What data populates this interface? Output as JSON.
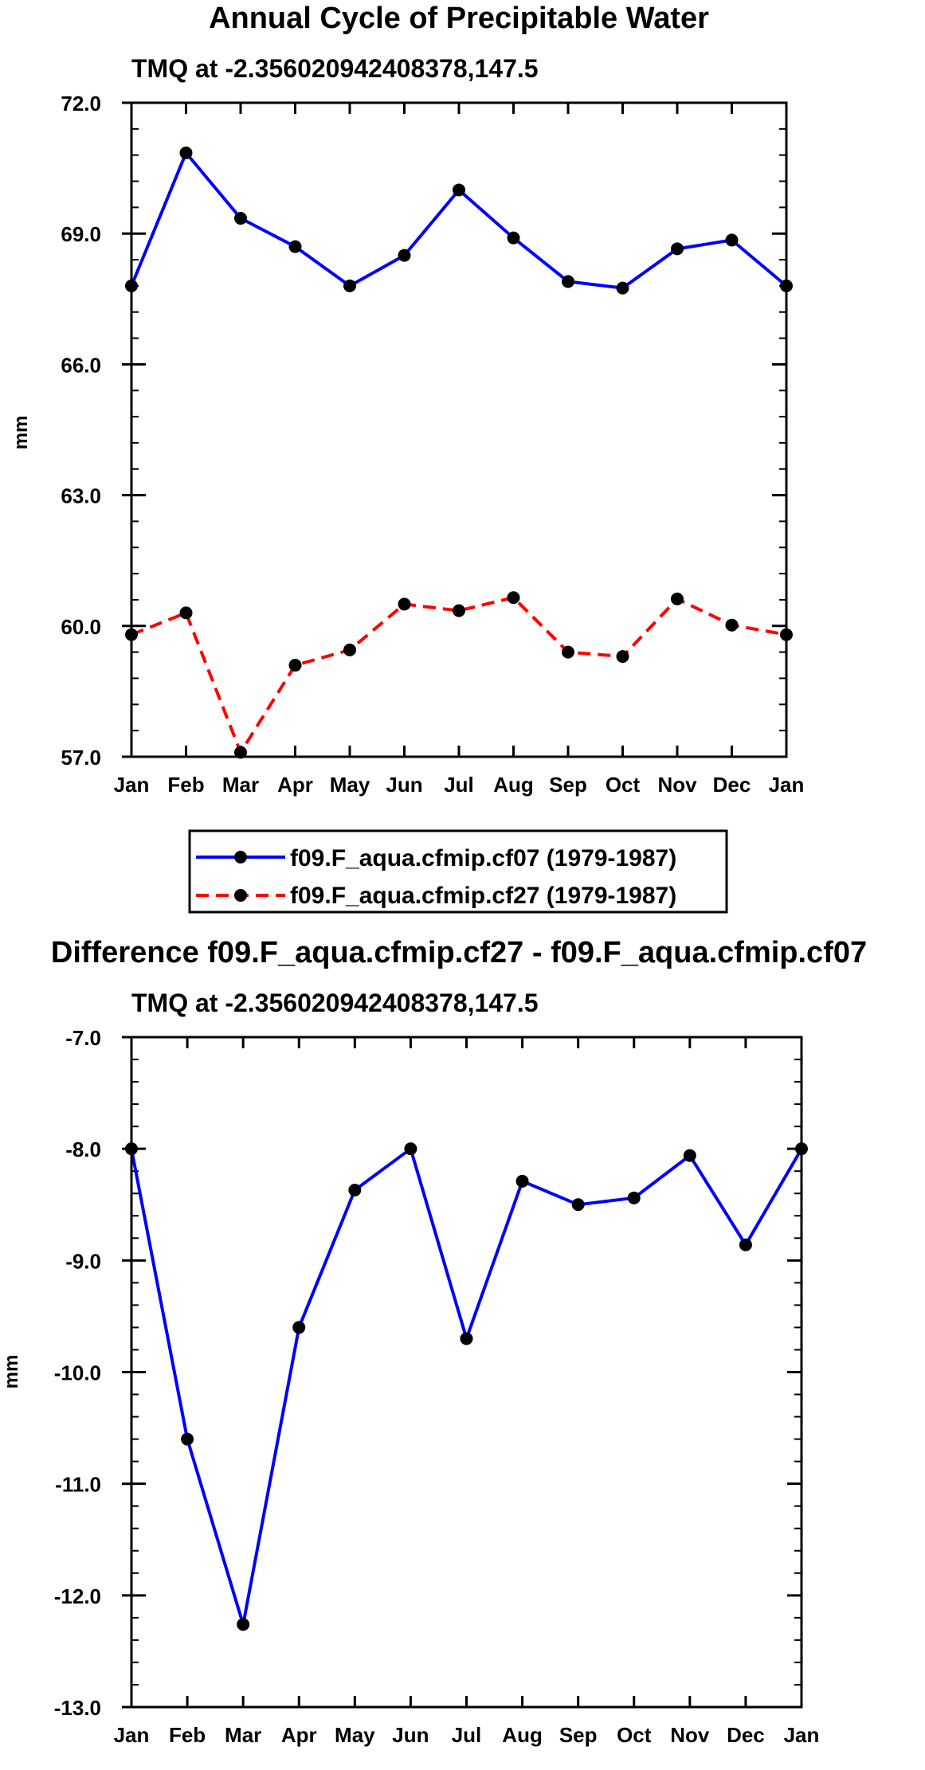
{
  "chart_data": [
    {
      "type": "line",
      "title": "Annual Cycle of Precipitable Water",
      "subtitle": "TMQ at -2.356020942408378,147.5",
      "xlabel": "",
      "ylabel": "mm",
      "categories": [
        "Jan",
        "Feb",
        "Mar",
        "Apr",
        "May",
        "Jun",
        "Jul",
        "Aug",
        "Sep",
        "Oct",
        "Nov",
        "Dec",
        "Jan"
      ],
      "ylim": [
        57.0,
        72.0
      ],
      "yticks": [
        "57.0",
        "60.0",
        "63.0",
        "66.0",
        "69.0",
        "72.0"
      ],
      "legend_position": "bottom-center",
      "series": [
        {
          "name": "f09.F_aqua.cfmip.cf07 (1979-1987)",
          "color": "#0000ff",
          "style": "solid",
          "values": [
            67.8,
            70.85,
            69.35,
            68.7,
            67.8,
            68.5,
            70.0,
            68.9,
            67.9,
            67.75,
            68.65,
            68.85,
            67.8
          ]
        },
        {
          "name": "f09.F_aqua.cfmip.cf27 (1979-1987)",
          "color": "#ff0000",
          "style": "dashed",
          "values": [
            59.8,
            60.3,
            57.1,
            59.1,
            59.45,
            60.5,
            60.35,
            60.65,
            59.4,
            59.3,
            60.62,
            60.02,
            59.8
          ]
        }
      ]
    },
    {
      "type": "line",
      "title": "Difference f09.F_aqua.cfmip.cf27 - f09.F_aqua.cfmip.cf07",
      "subtitle": "TMQ at -2.356020942408378,147.5",
      "xlabel": "",
      "ylabel": "mm",
      "categories": [
        "Jan",
        "Feb",
        "Mar",
        "Apr",
        "May",
        "Jun",
        "Jul",
        "Aug",
        "Sep",
        "Oct",
        "Nov",
        "Dec",
        "Jan"
      ],
      "ylim": [
        -13.0,
        -7.0
      ],
      "yticks": [
        "-13.0",
        "-12.0",
        "-11.0",
        "-10.0",
        "-9.0",
        "-8.0",
        "-7.0"
      ],
      "series": [
        {
          "name": "Difference",
          "color": "#0000ff",
          "style": "solid",
          "values": [
            -8.0,
            -10.6,
            -12.26,
            -9.6,
            -8.37,
            -8.0,
            -9.7,
            -8.29,
            -8.5,
            -8.44,
            -8.06,
            -8.86,
            -8.0
          ]
        }
      ]
    }
  ]
}
